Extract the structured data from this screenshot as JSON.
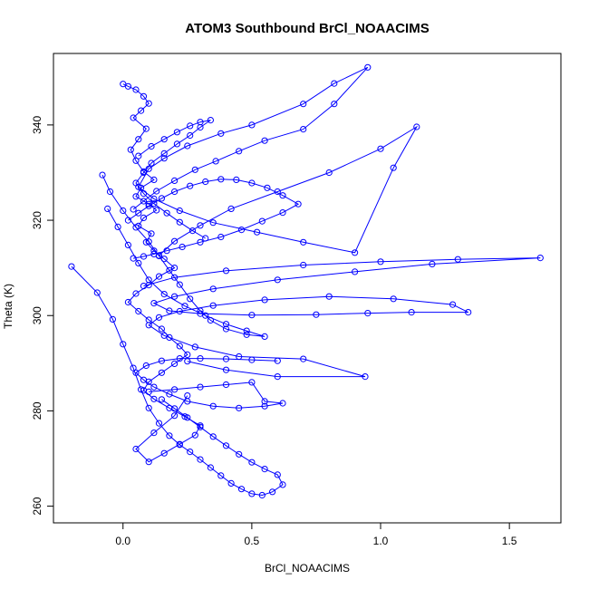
{
  "chart_data": {
    "type": "line",
    "title": "ATOM3 Southbound BrCl_NOAACIMS",
    "xlabel": "BrCl_NOAACIMS",
    "ylabel": "Theta (K)",
    "xlim": [
      -0.27,
      1.7
    ],
    "ylim": [
      256.5,
      355
    ],
    "xticks": [
      0.0,
      0.5,
      1.0,
      1.5
    ],
    "xtick_labels": [
      "0.0",
      "0.5",
      "1.0",
      "1.5"
    ],
    "yticks": [
      260,
      280,
      300,
      320,
      340
    ],
    "ytick_labels": [
      "260",
      "280",
      "300",
      "320",
      "340"
    ],
    "marker": "open-circle",
    "grid": false,
    "legend": "none",
    "colors": {
      "series": "#0000ff",
      "axes": "#000000",
      "background": "#ffffff"
    },
    "series": [
      {
        "x": [
          0.0,
          0.02,
          0.05,
          0.08,
          0.1,
          0.07,
          0.04,
          0.09,
          0.06,
          0.03,
          0.05,
          0.08,
          0.12,
          0.07,
          0.05,
          0.1,
          0.13,
          0.08,
          0.06,
          0.11,
          0.09,
          0.12,
          0.16,
          0.2,
          0.14,
          0.1,
          0.05,
          0.02,
          0.06,
          0.1,
          0.15,
          0.18,
          0.22,
          0.25,
          0.2,
          0.15,
          0.1,
          0.08,
          0.12,
          0.18,
          0.24,
          0.3,
          0.28,
          0.22,
          0.16,
          0.1,
          0.05,
          0.12,
          0.2,
          0.25
        ],
        "y": [
          348.6,
          348.1,
          347.4,
          346.0,
          344.5,
          343.0,
          341.5,
          339.2,
          337.0,
          334.8,
          332.5,
          330.2,
          328.5,
          326.8,
          325.0,
          323.4,
          322.1,
          320.5,
          318.8,
          317.2,
          315.4,
          313.6,
          311.9,
          310.0,
          308.2,
          306.4,
          304.6,
          302.8,
          300.9,
          299.1,
          297.2,
          295.4,
          293.6,
          291.8,
          289.9,
          288.0,
          286.1,
          284.3,
          282.5,
          280.6,
          278.8,
          276.9,
          274.9,
          273.0,
          271.1,
          269.3,
          272.0,
          275.4,
          279.0,
          283.2
        ]
      },
      {
        "x": [
          0.04,
          0.08,
          0.13,
          0.2,
          0.28,
          0.36,
          0.45,
          0.55,
          0.7,
          0.82,
          0.95,
          0.82,
          0.7,
          0.5,
          0.38,
          0.25,
          0.16,
          0.1,
          0.06,
          0.12,
          0.22,
          0.35,
          0.52,
          0.7,
          0.9,
          1.05,
          1.14,
          1.0,
          0.8,
          0.6,
          0.42,
          0.3,
          0.2,
          0.14
        ],
        "y": [
          322.3,
          324.0,
          326.1,
          328.3,
          330.6,
          332.4,
          334.5,
          336.7,
          339.1,
          344.4,
          352.1,
          348.7,
          344.4,
          340.0,
          338.2,
          335.6,
          333.0,
          330.8,
          327.0,
          324.5,
          322.0,
          319.5,
          317.5,
          315.4,
          313.2,
          331.0,
          339.6,
          335.0,
          330.0,
          326.0,
          322.4,
          318.9,
          315.6,
          312.6
        ]
      },
      {
        "x": [
          0.08,
          0.2,
          0.4,
          0.7,
          1.0,
          1.3,
          1.62,
          1.2,
          0.9,
          0.6,
          0.35,
          0.2,
          0.12,
          0.18,
          0.3,
          0.5,
          0.75,
          0.95,
          1.12,
          1.34,
          1.28,
          1.05,
          0.8,
          0.55,
          0.35,
          0.22,
          0.14,
          0.1,
          0.16,
          0.28,
          0.45,
          0.7,
          0.94,
          0.6,
          0.4,
          0.25
        ],
        "y": [
          306.2,
          308.0,
          309.4,
          310.6,
          311.3,
          311.8,
          312.1,
          310.8,
          309.2,
          307.5,
          305.6,
          304.0,
          302.6,
          301.0,
          300.4,
          300.1,
          300.2,
          300.5,
          300.7,
          300.7,
          302.3,
          303.5,
          304.0,
          303.3,
          302.1,
          300.9,
          299.6,
          298.0,
          295.8,
          293.4,
          291.4,
          290.9,
          287.2,
          287.2,
          288.6,
          290.4
        ]
      },
      {
        "x": [
          -0.2,
          -0.1,
          -0.04,
          0.0,
          0.04,
          0.07,
          0.1,
          0.14,
          0.18,
          0.22,
          0.26,
          0.3,
          0.34,
          0.38,
          0.42,
          0.46,
          0.5,
          0.54,
          0.58,
          0.62,
          0.6,
          0.55,
          0.5,
          0.45,
          0.4,
          0.35,
          0.3,
          0.25,
          0.2,
          0.15
        ],
        "y": [
          310.3,
          304.8,
          299.2,
          294.0,
          289.0,
          284.5,
          280.6,
          277.4,
          274.8,
          272.9,
          271.4,
          269.8,
          268.1,
          266.4,
          264.8,
          263.6,
          262.6,
          262.3,
          263.0,
          264.5,
          266.6,
          267.8,
          269.2,
          270.9,
          272.7,
          274.6,
          276.6,
          278.6,
          280.5,
          282.4
        ]
      },
      {
        "x": [
          0.1,
          0.2,
          0.3,
          0.4,
          0.5,
          0.55,
          0.62,
          0.55,
          0.45,
          0.35,
          0.25,
          0.18,
          0.12,
          0.08,
          0.05,
          0.09,
          0.15,
          0.22,
          0.3,
          0.4,
          0.5,
          0.6
        ],
        "y": [
          284.0,
          284.5,
          285.0,
          285.5,
          286.0,
          282.0,
          281.6,
          281.0,
          280.6,
          281.0,
          282.0,
          283.5,
          285.0,
          286.5,
          288.0,
          289.5,
          290.5,
          291.0,
          291.0,
          290.9,
          290.7,
          290.5
        ]
      },
      {
        "x": [
          -0.08,
          -0.05,
          0.0,
          0.05,
          0.1,
          0.14,
          0.18,
          0.22,
          0.26,
          0.3,
          0.34,
          0.4,
          0.48,
          0.55,
          0.48,
          0.4,
          0.32,
          0.24,
          0.16,
          0.1,
          0.06,
          0.02,
          -0.02,
          -0.06
        ],
        "y": [
          329.5,
          326.0,
          322.0,
          318.5,
          315.5,
          312.5,
          309.5,
          306.5,
          303.5,
          301.0,
          299.0,
          297.2,
          296.0,
          295.6,
          296.8,
          298.2,
          300.0,
          302.0,
          304.5,
          307.5,
          311.0,
          314.8,
          318.6,
          322.4
        ]
      },
      {
        "x": [
          0.02,
          0.06,
          0.1,
          0.15,
          0.2,
          0.26,
          0.32,
          0.38,
          0.44,
          0.5,
          0.56,
          0.62,
          0.68,
          0.62,
          0.54,
          0.46,
          0.38,
          0.3,
          0.23,
          0.17,
          0.12,
          0.08,
          0.04
        ],
        "y": [
          320.0,
          321.5,
          323.0,
          324.6,
          326.0,
          327.2,
          328.1,
          328.6,
          328.5,
          327.8,
          326.8,
          325.2,
          323.4,
          321.6,
          319.8,
          318.0,
          316.5,
          315.4,
          314.4,
          313.6,
          312.9,
          312.4,
          312.0
        ]
      },
      {
        "x": [
          0.06,
          0.11,
          0.16,
          0.21,
          0.26,
          0.3,
          0.34,
          0.3,
          0.26,
          0.21,
          0.16,
          0.11,
          0.08,
          0.05,
          0.08,
          0.12,
          0.17,
          0.22,
          0.27,
          0.32
        ],
        "y": [
          333.5,
          335.5,
          337.0,
          338.5,
          339.8,
          340.6,
          341.0,
          339.5,
          337.8,
          336.0,
          334.0,
          332.0,
          330.0,
          327.8,
          325.6,
          323.5,
          321.5,
          319.6,
          317.8,
          316.2
        ]
      }
    ]
  }
}
